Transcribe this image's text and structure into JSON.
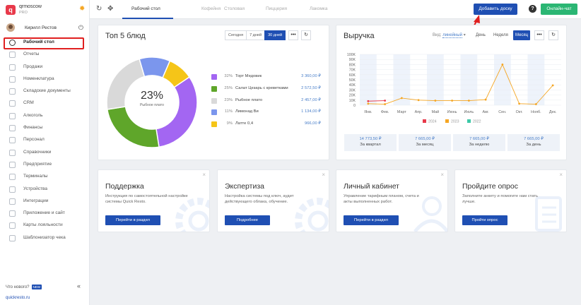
{
  "sidebar": {
    "brand": {
      "name": "qrmoscow",
      "plan": "PRO",
      "logo_letter": "q"
    },
    "user": {
      "name": "Кирилл Рестов"
    },
    "items": [
      {
        "label": "Рабочий стол",
        "icon": "dashboard-icon",
        "active": true
      },
      {
        "label": "Отчеты",
        "icon": "reports-icon"
      },
      {
        "label": "Продажи",
        "icon": "sales-icon"
      },
      {
        "label": "Номенклатура",
        "icon": "nomenclature-icon"
      },
      {
        "label": "Складские документы",
        "icon": "warehouse-icon"
      },
      {
        "label": "CRM",
        "icon": "crm-icon"
      },
      {
        "label": "Алкоголь",
        "icon": "alcohol-icon"
      },
      {
        "label": "Финансы",
        "icon": "finance-icon"
      },
      {
        "label": "Персонал",
        "icon": "staff-icon"
      },
      {
        "label": "Справочники",
        "icon": "directory-icon"
      },
      {
        "label": "Предприятие",
        "icon": "enterprise-icon"
      },
      {
        "label": "Терминалы",
        "icon": "terminal-icon"
      },
      {
        "label": "Устройства",
        "icon": "devices-icon"
      },
      {
        "label": "Интеграции",
        "icon": "integrations-icon"
      },
      {
        "label": "Приложение и сайт",
        "icon": "app-icon"
      },
      {
        "label": "Карты лояльности",
        "icon": "loyalty-icon"
      },
      {
        "label": "Шаблонизатор чека",
        "icon": "receipt-icon"
      }
    ],
    "whats_new": "Что нового?",
    "new_badge": "NEW",
    "site_link": "quickresto.ru"
  },
  "topbar": {
    "tabs": [
      "Рабочий стол",
      "Кофейня",
      "Столовая",
      "Пиццерия",
      "Лакомка"
    ],
    "add_board": "Добавить доску",
    "help": "?",
    "online_chat": "Онлайн-чат"
  },
  "top5": {
    "title": "Топ 5 блюд",
    "periods": [
      "Сегодня",
      "7 дней",
      "30 дней"
    ],
    "active_period": "30 дней",
    "center_pct": "23%",
    "center_label": "Рыбное плато",
    "items": [
      {
        "pct": "32%",
        "name": "Торт Медовик",
        "value": "3 360,00 ₽",
        "color": "#a366f2"
      },
      {
        "pct": "25%",
        "name": "Салат Цезарь с креветками",
        "value": "2 572,50 ₽",
        "color": "#5fa62a"
      },
      {
        "pct": "23%",
        "name": "Рыбное плато",
        "value": "2 457,00 ₽",
        "color": "#d9d9d9"
      },
      {
        "pct": "11%",
        "name": "Лимонад Ви",
        "value": "1 134,00 ₽",
        "color": "#7b96ed"
      },
      {
        "pct": "9%",
        "name": "Латте 0,4",
        "value": "966,00 ₽",
        "color": "#f5c518"
      }
    ]
  },
  "revenue": {
    "title": "Выручка",
    "view_label": "Вид:",
    "view_value": "линейный",
    "periods": [
      "День",
      "Неделя",
      "Месяц"
    ],
    "active_period": "Месяц",
    "stats": [
      {
        "value": "14 773,50 ₽",
        "label": "За квартал"
      },
      {
        "value": "7 665,00 ₽",
        "label": "За месяц"
      },
      {
        "value": "7 665,00 ₽",
        "label": "За неделю"
      },
      {
        "value": "7 665,00 ₽",
        "label": "За день"
      }
    ]
  },
  "chart_data": {
    "type": "line",
    "title": "",
    "categories": [
      "Янв.",
      "Фев.",
      "Март",
      "Апр.",
      "Май",
      "Июнь",
      "Июль",
      "Авг.",
      "Сен.",
      "Окт.",
      "Нояб.",
      "Дек."
    ],
    "y_ticks": [
      "0",
      "10K",
      "20K",
      "30K",
      "40K",
      "50K",
      "60K",
      "70K",
      "80K",
      "90K",
      "100K"
    ],
    "ylim": [
      0,
      100000
    ],
    "series": [
      {
        "name": "2024",
        "color": "#e8394a",
        "values": [
          8000,
          9000,
          null,
          null,
          null,
          null,
          null,
          null,
          null,
          null,
          null,
          null
        ]
      },
      {
        "name": "2023",
        "color": "#f5a623",
        "values": [
          3000,
          2000,
          14000,
          10000,
          9000,
          9000,
          9000,
          11000,
          80000,
          3000,
          2000,
          39000
        ]
      },
      {
        "name": "2022",
        "color": "#3dc9a8",
        "values": [
          null,
          null,
          null,
          null,
          null,
          null,
          null,
          null,
          null,
          null,
          null,
          null
        ]
      }
    ],
    "legend_position": "bottom",
    "grid": true
  },
  "info_cards": [
    {
      "title": "Поддержка",
      "desc": "Инструкция по самостоятельной настройке системы Quick Resto.",
      "button": "Перейти в раздел",
      "deco": "gear-icon"
    },
    {
      "title": "Экспертиза",
      "desc": "Настройка системы под ключ, аудит действующего облака, обучение.",
      "button": "Подробнее",
      "deco": "gear-icon"
    },
    {
      "title": "Личный кабинет",
      "desc": "Управление тарифным планом, счета и акты выполненных работ.",
      "button": "Перейти в раздел",
      "deco": "person-icon"
    },
    {
      "title": "Пройдите опрос",
      "desc": "Заполните анкету и помогите нам стать лучше.",
      "button": "Пройти опрос",
      "deco": "checklist-icon"
    }
  ]
}
